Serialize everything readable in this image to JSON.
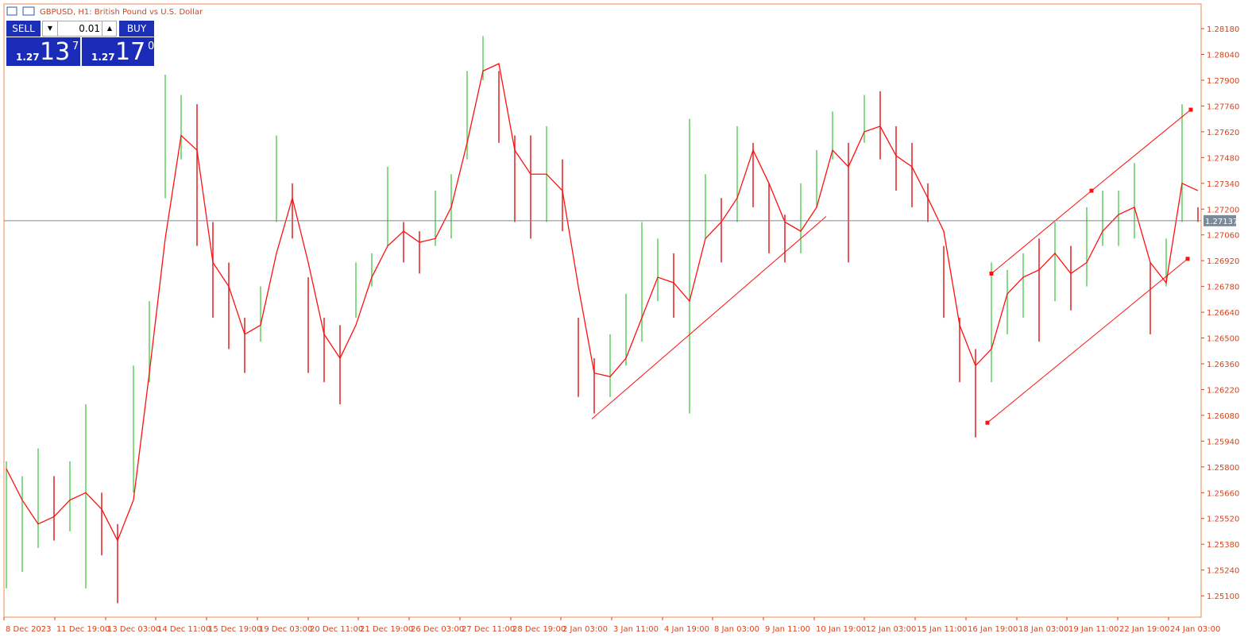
{
  "chart_data": {
    "type": "ohlc",
    "title": "GBPUSD, H1:  British Pound vs U.S. Dollar",
    "high": [
      1.2583,
      1.2575,
      1.259,
      1.2575,
      1.2583,
      1.2614,
      1.2566,
      1.2549,
      1.2635,
      1.267,
      1.2793,
      1.2782,
      1.2777,
      1.2713,
      1.2691,
      1.2661,
      1.2678,
      1.276,
      1.2734,
      1.2683,
      1.2661,
      1.2657,
      1.2691,
      1.2696,
      1.2743,
      1.2713,
      1.2708,
      1.273,
      1.2739,
      1.2795,
      1.2814,
      1.2795,
      1.276,
      1.276,
      1.2765,
      1.2747,
      1.2661,
      1.2639,
      1.2652,
      1.2674,
      1.2713,
      1.2704,
      1.2696,
      1.2769,
      1.2739,
      1.2726,
      1.2765,
      1.2756,
      1.2734,
      1.2717,
      1.2734,
      1.2752,
      1.2773,
      1.2756,
      1.2782,
      1.2784,
      1.2765,
      1.2756,
      1.2734,
      1.27,
      1.2661,
      1.2644,
      1.2691,
      1.2687,
      1.2696,
      1.2704,
      1.2713,
      1.27,
      1.2721,
      1.273,
      1.273,
      1.2745,
      1.2691,
      1.2704,
      1.2777,
      1.2721
    ],
    "low": [
      1.2514,
      1.2523,
      1.2536,
      1.254,
      1.2545,
      1.2514,
      1.2532,
      1.2506,
      1.2566,
      1.2626,
      1.2726,
      1.2747,
      1.27,
      1.2661,
      1.2644,
      1.2631,
      1.2648,
      1.2713,
      1.2704,
      1.2631,
      1.2626,
      1.2614,
      1.2661,
      1.2678,
      1.27,
      1.2691,
      1.2685,
      1.27,
      1.2704,
      1.2747,
      1.279,
      1.2756,
      1.2713,
      1.2704,
      1.2713,
      1.2708,
      1.2618,
      1.2609,
      1.2618,
      1.2635,
      1.2648,
      1.267,
      1.2661,
      1.2609,
      1.2704,
      1.2691,
      1.2713,
      1.2721,
      1.2696,
      1.2691,
      1.2696,
      1.2721,
      1.2747,
      1.2691,
      1.2756,
      1.2747,
      1.273,
      1.2721,
      1.2713,
      1.2661,
      1.2626,
      1.2596,
      1.2626,
      1.2652,
      1.2661,
      1.2648,
      1.267,
      1.2665,
      1.2678,
      1.27,
      1.27,
      1.2704,
      1.2652,
      1.2678,
      1.2713,
      1.2713
    ],
    "ma": [
      1.2579,
      1.2562,
      1.2549,
      1.2553,
      1.2562,
      1.2566,
      1.2557,
      1.254,
      1.2562,
      1.2631,
      1.2704,
      1.276,
      1.2752,
      1.2691,
      1.2678,
      1.2652,
      1.2657,
      1.2696,
      1.2726,
      1.2691,
      1.2652,
      1.2639,
      1.2657,
      1.2683,
      1.27,
      1.2708,
      1.2702,
      1.2704,
      1.2721,
      1.2756,
      1.2795,
      1.2799,
      1.2752,
      1.2739,
      1.2739,
      1.273,
      1.2678,
      1.2631,
      1.2629,
      1.2639,
      1.2661,
      1.2683,
      1.268,
      1.267,
      1.2704,
      1.2713,
      1.2726,
      1.2752,
      1.2734,
      1.2713,
      1.2708,
      1.2721,
      1.2752,
      1.2743,
      1.2762,
      1.2765,
      1.2749,
      1.2743,
      1.2726,
      1.2708,
      1.2657,
      1.2635,
      1.2644,
      1.2674,
      1.2683,
      1.2687,
      1.2696,
      1.2685,
      1.2691,
      1.2708,
      1.2717,
      1.2721,
      1.2691,
      1.268,
      1.2734,
      1.273
    ],
    "xlim": [
      -0.15,
      75.2
    ],
    "ylim": [
      1.24984,
      1.28314
    ],
    "yticks": [
      {
        "value": 1.251,
        "label": "1.25100"
      },
      {
        "value": 1.2524,
        "label": "1.25240"
      },
      {
        "value": 1.2538,
        "label": "1.25380"
      },
      {
        "value": 1.2552,
        "label": "1.25520"
      },
      {
        "value": 1.2566,
        "label": "1.25660"
      },
      {
        "value": 1.258,
        "label": "1.25800"
      },
      {
        "value": 1.2594,
        "label": "1.25940"
      },
      {
        "value": 1.2608,
        "label": "1.26080"
      },
      {
        "value": 1.2622,
        "label": "1.26220"
      },
      {
        "value": 1.2636,
        "label": "1.26360"
      },
      {
        "value": 1.265,
        "label": "1.26500"
      },
      {
        "value": 1.2664,
        "label": "1.26640"
      },
      {
        "value": 1.2678,
        "label": "1.26780"
      },
      {
        "value": 1.2692,
        "label": "1.26920"
      },
      {
        "value": 1.2706,
        "label": "1.27060"
      },
      {
        "value": 1.272,
        "label": "1.27200"
      },
      {
        "value": 1.2734,
        "label": "1.27340"
      },
      {
        "value": 1.2748,
        "label": "1.27480"
      },
      {
        "value": 1.2762,
        "label": "1.27620"
      },
      {
        "value": 1.2776,
        "label": "1.27760"
      },
      {
        "value": 1.279,
        "label": "1.27900"
      },
      {
        "value": 1.2804,
        "label": "1.28040"
      },
      {
        "value": 1.2818,
        "label": "1.28180"
      }
    ],
    "xticks": [
      {
        "value": -0.15,
        "label": "8 Dec 2023"
      },
      {
        "value": 3.05,
        "label": "11 Dec 19:00"
      },
      {
        "value": 6.25,
        "label": "13 Dec 03:00"
      },
      {
        "value": 9.4,
        "label": "14 Dec 11:00"
      },
      {
        "value": 12.6,
        "label": "15 Dec 19:00"
      },
      {
        "value": 15.8,
        "label": "19 Dec 03:00"
      },
      {
        "value": 19.0,
        "label": "20 Dec 11:00"
      },
      {
        "value": 22.15,
        "label": "21 Dec 19:00"
      },
      {
        "value": 25.35,
        "label": "26 Dec 03:00"
      },
      {
        "value": 28.55,
        "label": "27 Dec 11:00"
      },
      {
        "value": 31.75,
        "label": "28 Dec 19:00"
      },
      {
        "value": 34.9,
        "label": "2 Jan 03:00"
      },
      {
        "value": 38.1,
        "label": "3 Jan 11:00"
      },
      {
        "value": 41.3,
        "label": "4 Jan 19:00"
      },
      {
        "value": 44.45,
        "label": "8 Jan 03:00"
      },
      {
        "value": 47.65,
        "label": "9 Jan 11:00"
      },
      {
        "value": 50.85,
        "label": "10 Jan 19:00"
      },
      {
        "value": 54.0,
        "label": "12 Jan 03:00"
      },
      {
        "value": 57.2,
        "label": "15 Jan 11:00"
      },
      {
        "value": 60.4,
        "label": "16 Jan 19:00"
      },
      {
        "value": 63.6,
        "label": "18 Jan 03:00"
      },
      {
        "value": 66.75,
        "label": "19 Jan 11:00"
      },
      {
        "value": 69.95,
        "label": "22 Jan 19:00"
      },
      {
        "value": 73.15,
        "label": "24 Jan 03:00"
      }
    ],
    "trendlines": [
      {
        "x": [
          36.85,
          51.6
        ],
        "y": [
          1.2606,
          1.2716
        ]
      },
      {
        "x": [
          62.0,
          68.3,
          74.55
        ],
        "y": [
          1.2685,
          1.273,
          1.2774
        ]
      },
      {
        "x": [
          61.75,
          74.35
        ],
        "y": [
          1.2604,
          1.2693
        ]
      }
    ],
    "price_line": {
      "value": 1.27137
    },
    "colors": {
      "up": "#5ccf5c",
      "down": "#e02020",
      "ma": "#ff1010",
      "axis": "#d2451e",
      "price_line": "#7a8a99"
    }
  },
  "trade_panel": {
    "sell": "SELL",
    "lot": "0.01",
    "buy": "BUY",
    "bid": {
      "big": "1.27",
      "digits": "13",
      "sup": "7"
    },
    "ask": {
      "big": "1.27",
      "digits": "17",
      "sup": "0"
    }
  }
}
